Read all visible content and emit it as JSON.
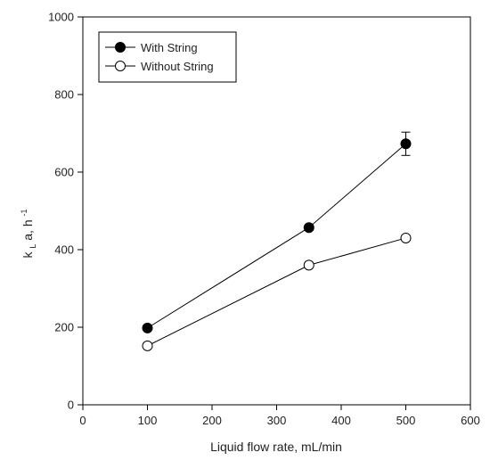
{
  "chart_data": {
    "type": "line",
    "xlabel": "Liquid flow rate, mL/min",
    "ylabel": {
      "main": "k",
      "sub": "L",
      "rest": "a, h",
      "sup": "-1"
    },
    "xlim": [
      0,
      600
    ],
    "ylim": [
      0,
      1000
    ],
    "xticks": [
      "0",
      "100",
      "200",
      "300",
      "400",
      "500",
      "600"
    ],
    "yticks": [
      "0",
      "200",
      "400",
      "600",
      "800",
      "1000"
    ],
    "grid": false,
    "legend_position": "top-left",
    "series": [
      {
        "name": "With String",
        "marker": "filled-circle",
        "color": "#000000",
        "x": [
          100,
          350,
          500
        ],
        "y": [
          198,
          457,
          673
        ],
        "error": [
          0,
          0,
          30
        ]
      },
      {
        "name": "Without String",
        "marker": "open-circle",
        "color": "#000000",
        "x": [
          100,
          350,
          500
        ],
        "y": [
          152,
          360,
          430
        ],
        "error": [
          0,
          0,
          0
        ]
      }
    ]
  }
}
